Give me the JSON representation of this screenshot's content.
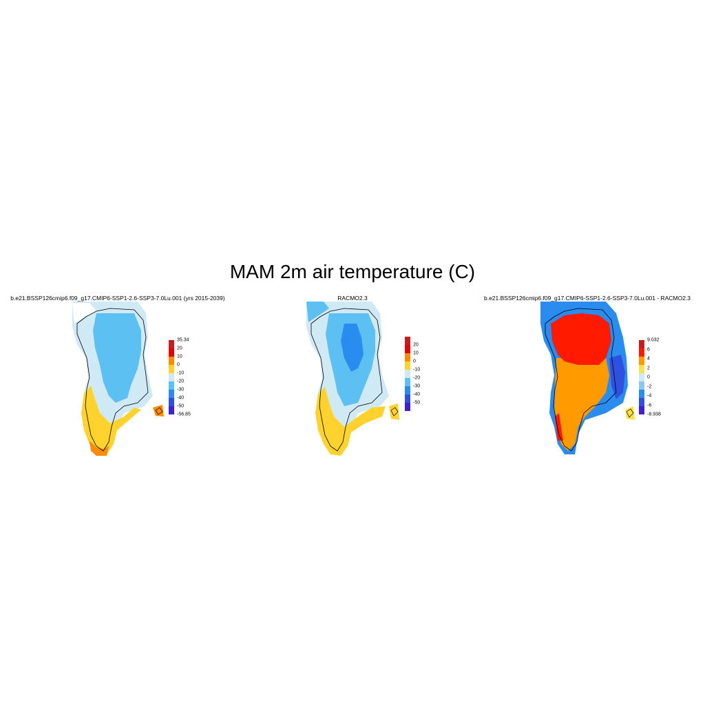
{
  "figure": {
    "title": "MAM 2m air temperature (C)"
  },
  "panels": [
    {
      "title": "b.e21.BSSP126cmip6.f09_g17.CMIP6-SSP1-2.6-SSP3-7.0Lu.001 (yrs 2015-2039)",
      "colorbar": {
        "labels": [
          "35.34",
          "20",
          "10",
          "0",
          "-10",
          "-20",
          "-30",
          "-40",
          "-50",
          "-56.85"
        ],
        "colors": [
          "#c41e1e",
          "#e60000",
          "#ff8c00",
          "#ffd22e",
          "#cfe9f5",
          "#5cc0f2",
          "#2b8cf0",
          "#3050e0",
          "#4020d0"
        ]
      }
    },
    {
      "title": "RACMO2.3",
      "colorbar": {
        "labels": [
          "20",
          "10",
          "0",
          "-10",
          "-20",
          "-30",
          "-40",
          "-50"
        ],
        "colors": [
          "#c41e1e",
          "#e60000",
          "#ff8c00",
          "#ffd22e",
          "#cfe9f5",
          "#5cc0f2",
          "#2b8cf0",
          "#3050e0",
          "#4020d0"
        ]
      }
    },
    {
      "title": "b.e21.BSSP126cmip6.f09_g17.CMIP6-SSP1-2.6-SSP3-7.0Lu.001 - RACMO2.3",
      "colorbar": {
        "labels": [
          "9.032",
          "6",
          "4",
          "2",
          "0",
          "-2",
          "-4",
          "-6",
          "-8.938"
        ],
        "colors": [
          "#c41e1e",
          "#ff1a00",
          "#ff9a00",
          "#ffe24a",
          "#cfe9f5",
          "#8cc8ee",
          "#2b8cf0",
          "#3050e0",
          "#4020d0"
        ]
      }
    }
  ]
}
